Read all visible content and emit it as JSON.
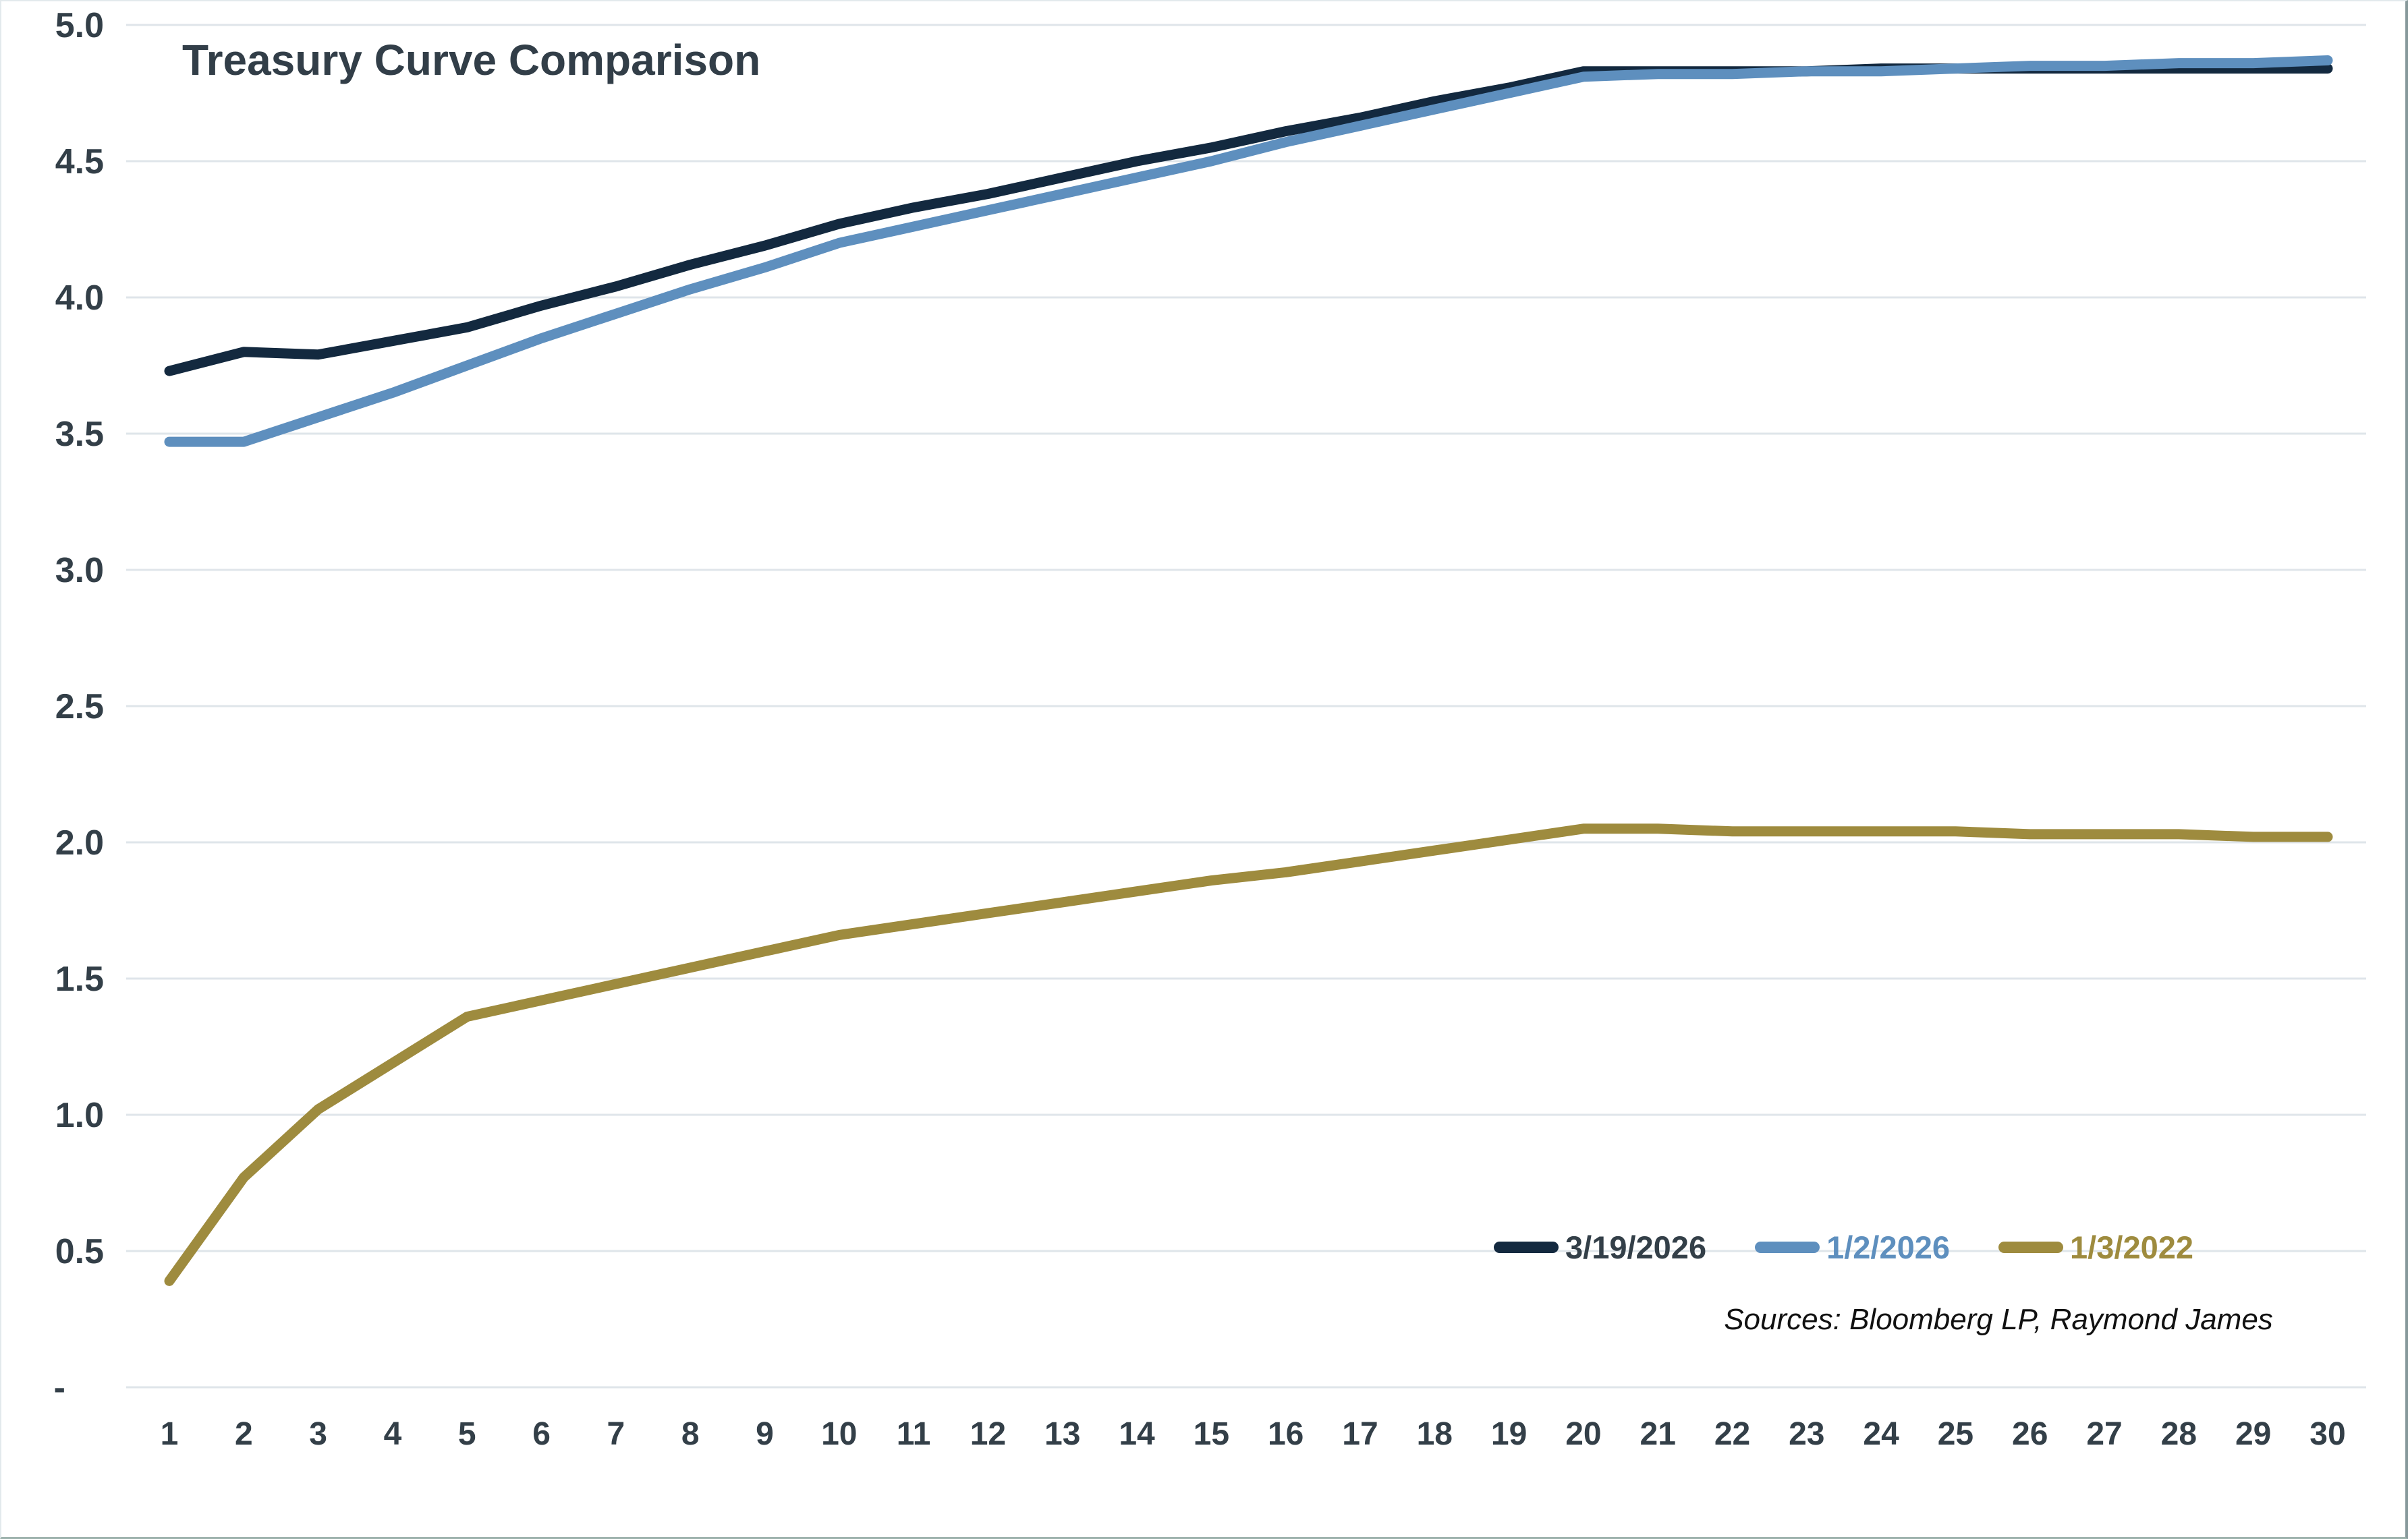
{
  "title": "Treasury Curve Comparison",
  "source_note": "Sources: Bloomberg LP, Raymond James",
  "colors": {
    "background": "#ffffff",
    "gridline": "#dfe5ea",
    "axis_text": "#333f48",
    "title_text": "#323e48"
  },
  "chart_data": {
    "type": "line",
    "title": "Treasury Curve Comparison",
    "xlabel": "",
    "ylabel": "",
    "x": [
      1,
      2,
      3,
      4,
      5,
      6,
      7,
      8,
      9,
      10,
      11,
      12,
      13,
      14,
      15,
      16,
      17,
      18,
      19,
      20,
      21,
      22,
      23,
      24,
      25,
      26,
      27,
      28,
      29,
      30
    ],
    "x_tick_labels": [
      "1",
      "2",
      "3",
      "4",
      "5",
      "6",
      "7",
      "8",
      "9",
      "10",
      "11",
      "12",
      "13",
      "14",
      "15",
      "16",
      "17",
      "18",
      "19",
      "20",
      "21",
      "22",
      "23",
      "24",
      "25",
      "26",
      "27",
      "28",
      "29",
      "30"
    ],
    "ylim": [
      0,
      5
    ],
    "y_tick_values": [
      5.0,
      4.5,
      4.0,
      3.5,
      3.0,
      2.5,
      2.0,
      1.5,
      1.0,
      0.5,
      0.0
    ],
    "y_tick_labels": [
      "5.0",
      "4.5",
      "4.0",
      "3.5",
      "3.0",
      "2.5",
      "2.0",
      "1.5",
      "1.0",
      "0.5",
      "-"
    ],
    "grid": true,
    "legend_position": "inside-bottom-right",
    "series": [
      {
        "name": "3/19/2026",
        "color": "#13293f",
        "label_color": "#333f48",
        "values": [
          3.73,
          3.8,
          3.79,
          3.84,
          3.89,
          3.97,
          4.04,
          4.12,
          4.19,
          4.27,
          4.33,
          4.38,
          4.44,
          4.5,
          4.55,
          4.61,
          4.66,
          4.72,
          4.77,
          4.83,
          4.83,
          4.83,
          4.83,
          4.84,
          4.84,
          4.84,
          4.84,
          4.84,
          4.84,
          4.84
        ]
      },
      {
        "name": "1/2/2026",
        "color": "#5e8fbe",
        "label_color": "#5e8fbe",
        "values": [
          3.47,
          3.47,
          3.56,
          3.65,
          3.75,
          3.85,
          3.94,
          4.03,
          4.11,
          4.2,
          4.26,
          4.32,
          4.38,
          4.44,
          4.5,
          4.57,
          4.63,
          4.69,
          4.75,
          4.81,
          4.82,
          4.82,
          4.83,
          4.83,
          4.84,
          4.85,
          4.85,
          4.86,
          4.86,
          4.87
        ]
      },
      {
        "name": "1/3/2022",
        "color": "#9e8b3e",
        "label_color": "#9e8b3e",
        "values": [
          0.39,
          0.77,
          1.02,
          1.19,
          1.36,
          1.42,
          1.48,
          1.54,
          1.6,
          1.66,
          1.7,
          1.74,
          1.78,
          1.82,
          1.86,
          1.89,
          1.93,
          1.97,
          2.01,
          2.05,
          2.05,
          2.04,
          2.04,
          2.04,
          2.04,
          2.03,
          2.03,
          2.03,
          2.02,
          2.02
        ]
      }
    ]
  }
}
